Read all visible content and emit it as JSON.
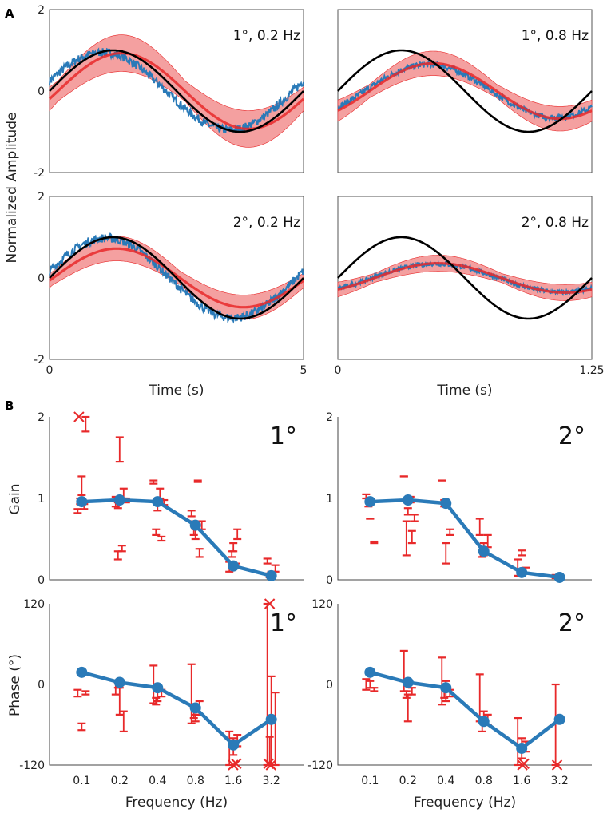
{
  "panel_labels": {
    "a": "A",
    "b": "B"
  },
  "chart_data": [
    {
      "type": "line",
      "id": "a-1-02",
      "annotation": "1°, 0.2 Hz",
      "ylabel": "Normalized Amplitude",
      "xlabel": "",
      "xlim": [
        0,
        5
      ],
      "ylim": [
        -2,
        2
      ],
      "yticks": [
        "2",
        "0",
        "-2"
      ],
      "xticks": [],
      "freq": 0.2,
      "stim_amp": 1.0,
      "resp_gain": 0.95,
      "resp_phase_deg": 15,
      "model_gain": 0.93,
      "model_phase_deg": -12,
      "model_band": 0.45,
      "series": [
        {
          "name": "stimulus",
          "color": "#000000"
        },
        {
          "name": "response",
          "color": "#1f77b4"
        },
        {
          "name": "model",
          "color": "#e8292a"
        }
      ]
    },
    {
      "type": "line",
      "id": "a-1-08",
      "annotation": "1°, 0.8 Hz",
      "xlabel": "",
      "xlim": [
        0,
        1.25
      ],
      "ylim": [
        -2,
        2
      ],
      "yticks": [],
      "xticks": [],
      "freq": 0.8,
      "stim_amp": 1.0,
      "resp_gain": 0.65,
      "resp_phase_deg": -38,
      "model_gain": 0.68,
      "model_phase_deg": -45,
      "model_band": 0.3,
      "series": [
        {
          "name": "stimulus",
          "color": "#000000"
        },
        {
          "name": "response",
          "color": "#1f77b4"
        },
        {
          "name": "model",
          "color": "#e8292a"
        }
      ]
    },
    {
      "type": "line",
      "id": "a-2-02",
      "annotation": "2°, 0.2 Hz",
      "xlabel": "Time (s)",
      "xlim": [
        0,
        5
      ],
      "ylim": [
        -2,
        2
      ],
      "yticks": [
        "2",
        "0",
        "-2"
      ],
      "xticks": [
        "0",
        "5"
      ],
      "freq": 0.2,
      "stim_amp": 1.0,
      "resp_gain": 0.98,
      "resp_phase_deg": 10,
      "model_gain": 0.72,
      "model_phase_deg": -5,
      "model_band": 0.3,
      "series": [
        {
          "name": "stimulus",
          "color": "#000000"
        },
        {
          "name": "response",
          "color": "#1f77b4"
        },
        {
          "name": "model",
          "color": "#e8292a"
        }
      ]
    },
    {
      "type": "line",
      "id": "a-2-08",
      "annotation": "2°, 0.8 Hz",
      "xlabel": "Time (s)",
      "xlim": [
        0,
        1.25
      ],
      "ylim": [
        -2,
        2
      ],
      "yticks": [],
      "xticks": [
        "0",
        "1.25"
      ],
      "freq": 0.8,
      "stim_amp": 1.0,
      "resp_gain": 0.35,
      "resp_phase_deg": -48,
      "model_gain": 0.36,
      "model_phase_deg": -52,
      "model_band": 0.2,
      "series": [
        {
          "name": "stimulus",
          "color": "#000000"
        },
        {
          "name": "response",
          "color": "#1f77b4"
        },
        {
          "name": "model",
          "color": "#e8292a"
        }
      ]
    },
    {
      "type": "line",
      "id": "b-gain-1",
      "annotation": "1°",
      "ylabel": "Gain",
      "ylim": [
        0,
        2
      ],
      "yticks": [
        "2",
        "1",
        "0"
      ],
      "categories": [
        "0.1",
        "0.2",
        "0.4",
        "0.8",
        "1.6",
        "3.2"
      ],
      "mean": [
        0.96,
        0.98,
        0.96,
        0.67,
        0.17,
        0.05
      ],
      "errorbars": [
        [
          [
            0.82,
            0.87
          ],
          [
            1.04,
            1.27
          ],
          [
            2.0,
            1.82
          ],
          [
            0.93,
            1.0
          ],
          [
            0.87,
            0.93
          ]
        ],
        [
          [
            0.9,
            1.02
          ],
          [
            1.45,
            1.75
          ],
          [
            1.0,
            1.12
          ],
          [
            0.25,
            0.35
          ],
          [
            0.35,
            0.42
          ],
          [
            0.95,
            1.0
          ],
          [
            0.88,
            0.95
          ]
        ],
        [
          [
            1.18,
            1.22
          ],
          [
            0.85,
            0.95
          ],
          [
            0.48,
            0.53
          ],
          [
            0.55,
            0.62
          ],
          [
            1.0,
            1.12
          ],
          [
            0.92,
            0.98
          ]
        ],
        [
          [
            0.78,
            0.85
          ],
          [
            0.5,
            0.62
          ],
          [
            0.28,
            0.38
          ],
          [
            0.55,
            0.72
          ],
          [
            1.2,
            1.22
          ],
          [
            0.62,
            0.72
          ]
        ],
        [
          [
            0.1,
            0.22
          ],
          [
            0.35,
            0.45
          ],
          [
            0.5,
            0.62
          ],
          [
            0.28,
            0.35
          ],
          [
            0.15,
            0.2
          ]
        ],
        [
          [
            0.2,
            0.26
          ],
          [
            0.02,
            0.1
          ],
          [
            0.1,
            0.18
          ],
          [
            0.03,
            0.08
          ]
        ]
      ],
      "crosses": [
        [
          0,
          2.0
        ]
      ]
    },
    {
      "type": "line",
      "id": "b-gain-2",
      "annotation": "2°",
      "ylim": [
        0,
        2
      ],
      "yticks": [
        "2",
        "1",
        "0"
      ],
      "categories": [
        "0.1",
        "0.2",
        "0.4",
        "0.8",
        "1.6",
        "3.2"
      ],
      "mean": [
        0.96,
        0.98,
        0.94,
        0.35,
        0.09,
        0.03
      ],
      "errorbars": [
        [
          [
            1.0,
            1.05
          ],
          [
            0.75,
            0.75
          ],
          [
            0.45,
            0.47
          ],
          [
            0.9,
            1.0
          ]
        ],
        [
          [
            1.27,
            1.27
          ],
          [
            0.8,
            0.88
          ],
          [
            0.45,
            0.6
          ],
          [
            0.3,
            0.72
          ],
          [
            0.95,
            1.02
          ],
          [
            0.72,
            0.8
          ]
        ],
        [
          [
            1.22,
            1.22
          ],
          [
            0.2,
            0.45
          ],
          [
            0.55,
            0.62
          ],
          [
            0.9,
            0.98
          ]
        ],
        [
          [
            0.55,
            0.75
          ],
          [
            0.3,
            0.45
          ],
          [
            0.4,
            0.55
          ],
          [
            0.28,
            0.35
          ]
        ],
        [
          [
            0.05,
            0.25
          ],
          [
            0.3,
            0.36
          ],
          [
            0.08,
            0.15
          ]
        ],
        [
          [
            0.02,
            0.06
          ]
        ]
      ],
      "crosses": []
    },
    {
      "type": "line",
      "id": "b-phase-1",
      "annotation": "1°",
      "ylabel": "Phase (°)",
      "xlabel": "Frequency (Hz)",
      "ylim": [
        -120,
        120
      ],
      "yticks": [
        "120",
        "0",
        "-120"
      ],
      "categories": [
        "0.1",
        "0.2",
        "0.4",
        "0.8",
        "1.6",
        "3.2"
      ],
      "mean": [
        18,
        3,
        -5,
        -35,
        -90,
        -52
      ],
      "errorbars": [
        [
          [
            -18,
            -8
          ],
          [
            -68,
            -58
          ],
          [
            -15,
            -10
          ]
        ],
        [
          [
            -15,
            5
          ],
          [
            -45,
            -5
          ],
          [
            -70,
            -40
          ],
          [
            -5,
            2
          ]
        ],
        [
          [
            -28,
            28
          ],
          [
            -25,
            -5
          ],
          [
            -18,
            -8
          ],
          [
            -30,
            -20
          ]
        ],
        [
          [
            -58,
            30
          ],
          [
            -55,
            -45
          ],
          [
            -45,
            -25
          ],
          [
            -50,
            -35
          ]
        ],
        [
          [
            -120,
            -70
          ],
          [
            -105,
            -80
          ],
          [
            -92,
            -75
          ]
        ],
        [
          [
            -120,
            120
          ],
          [
            -120,
            12
          ],
          [
            -120,
            -12
          ],
          [
            -120,
            -78
          ]
        ]
      ],
      "crosses": [
        [
          4,
          -120
        ],
        [
          4,
          -118
        ],
        [
          5,
          120
        ],
        [
          5,
          -120
        ],
        [
          5,
          -118
        ]
      ]
    },
    {
      "type": "line",
      "id": "b-phase-2",
      "annotation": "2°",
      "ylabel": "",
      "xlabel": "Frequency (Hz)",
      "ylim": [
        -120,
        120
      ],
      "yticks": [
        "120",
        "0",
        "-120"
      ],
      "categories": [
        "0.1",
        "0.2",
        "0.4",
        "0.8",
        "1.6",
        "3.2"
      ],
      "mean": [
        18,
        3,
        -5,
        -55,
        -95,
        -52
      ],
      "errorbars": [
        [
          [
            -8,
            8
          ],
          [
            -5,
            5
          ],
          [
            -10,
            -5
          ]
        ],
        [
          [
            -10,
            50
          ],
          [
            -55,
            -15
          ],
          [
            -15,
            -5
          ],
          [
            -20,
            -10
          ]
        ],
        [
          [
            -30,
            40
          ],
          [
            -25,
            5
          ],
          [
            -18,
            -8
          ],
          [
            -20,
            -5
          ]
        ],
        [
          [
            -55,
            15
          ],
          [
            -55,
            -40
          ],
          [
            -60,
            -45
          ],
          [
            -70,
            -50
          ]
        ],
        [
          [
            -120,
            -50
          ],
          [
            -110,
            -80
          ],
          [
            -100,
            -85
          ]
        ],
        [
          [
            -120,
            0
          ]
        ]
      ],
      "crosses": [
        [
          4,
          -120
        ],
        [
          4,
          -118
        ],
        [
          5,
          -120
        ]
      ]
    }
  ]
}
